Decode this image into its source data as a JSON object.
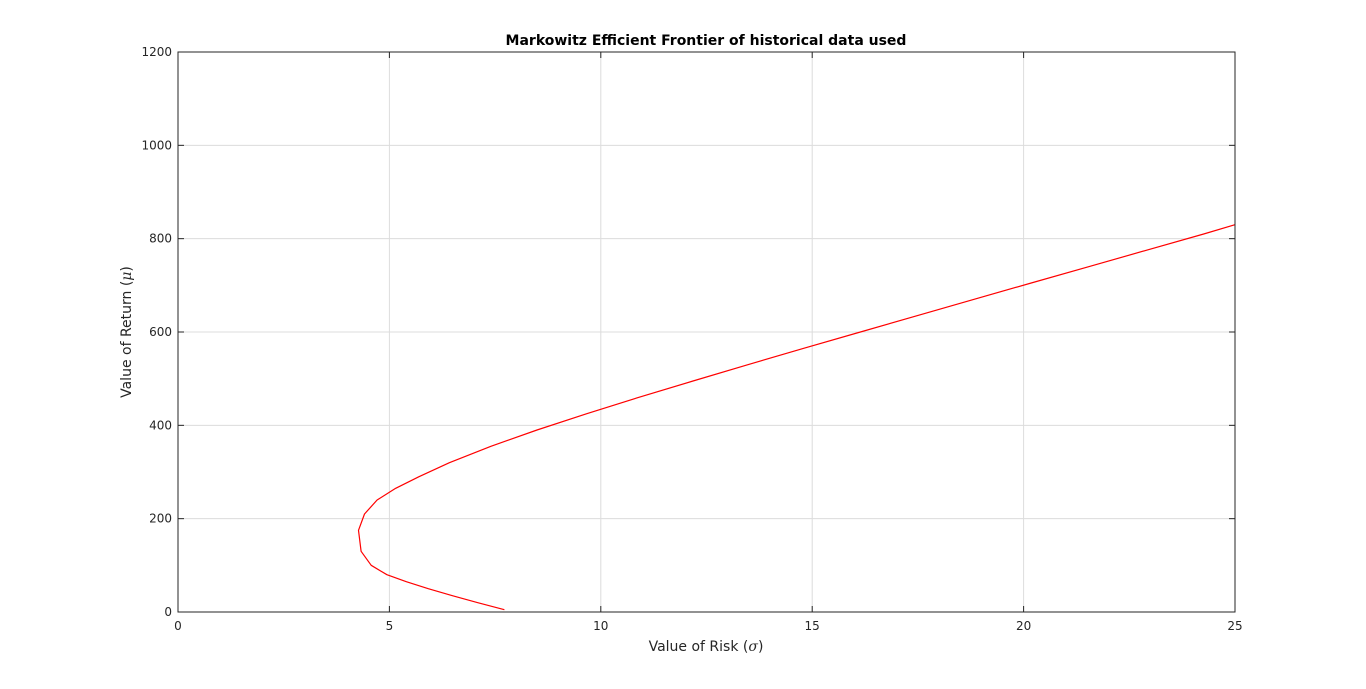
{
  "chart_data": {
    "type": "line",
    "title": "Markowitz Efficient Frontier of historical data used",
    "xlabel": {
      "prefix": "Value of Risk (",
      "symbol": "σ",
      "suffix": ")"
    },
    "ylabel": {
      "prefix": "Value of Return (",
      "symbol": "μ",
      "suffix": ")"
    },
    "xlim": [
      0,
      25
    ],
    "ylim": [
      0,
      1200
    ],
    "xticks": [
      0,
      5,
      10,
      15,
      20,
      25
    ],
    "yticks": [
      0,
      200,
      400,
      600,
      800,
      1000,
      1200
    ],
    "grid": true,
    "series": [
      {
        "color": "#ff0000",
        "x": [
          7.72,
          7.09,
          6.49,
          5.92,
          5.4,
          4.94,
          4.57,
          4.33,
          4.27,
          4.41,
          4.71,
          5.15,
          5.7,
          6.42,
          7.4,
          8.49,
          9.67,
          10.9,
          12.18,
          13.48,
          14.8,
          16.14,
          17.48,
          18.83,
          20.18,
          21.54,
          22.9,
          24.26,
          25.0
        ],
        "y": [
          5,
          20,
          35,
          50,
          65,
          80,
          100,
          130,
          175,
          210,
          240,
          265,
          290,
          320,
          355,
          390,
          425,
          460,
          495,
          530,
          565,
          600,
          635,
          670,
          705,
          740,
          775,
          810,
          830
        ]
      }
    ]
  }
}
